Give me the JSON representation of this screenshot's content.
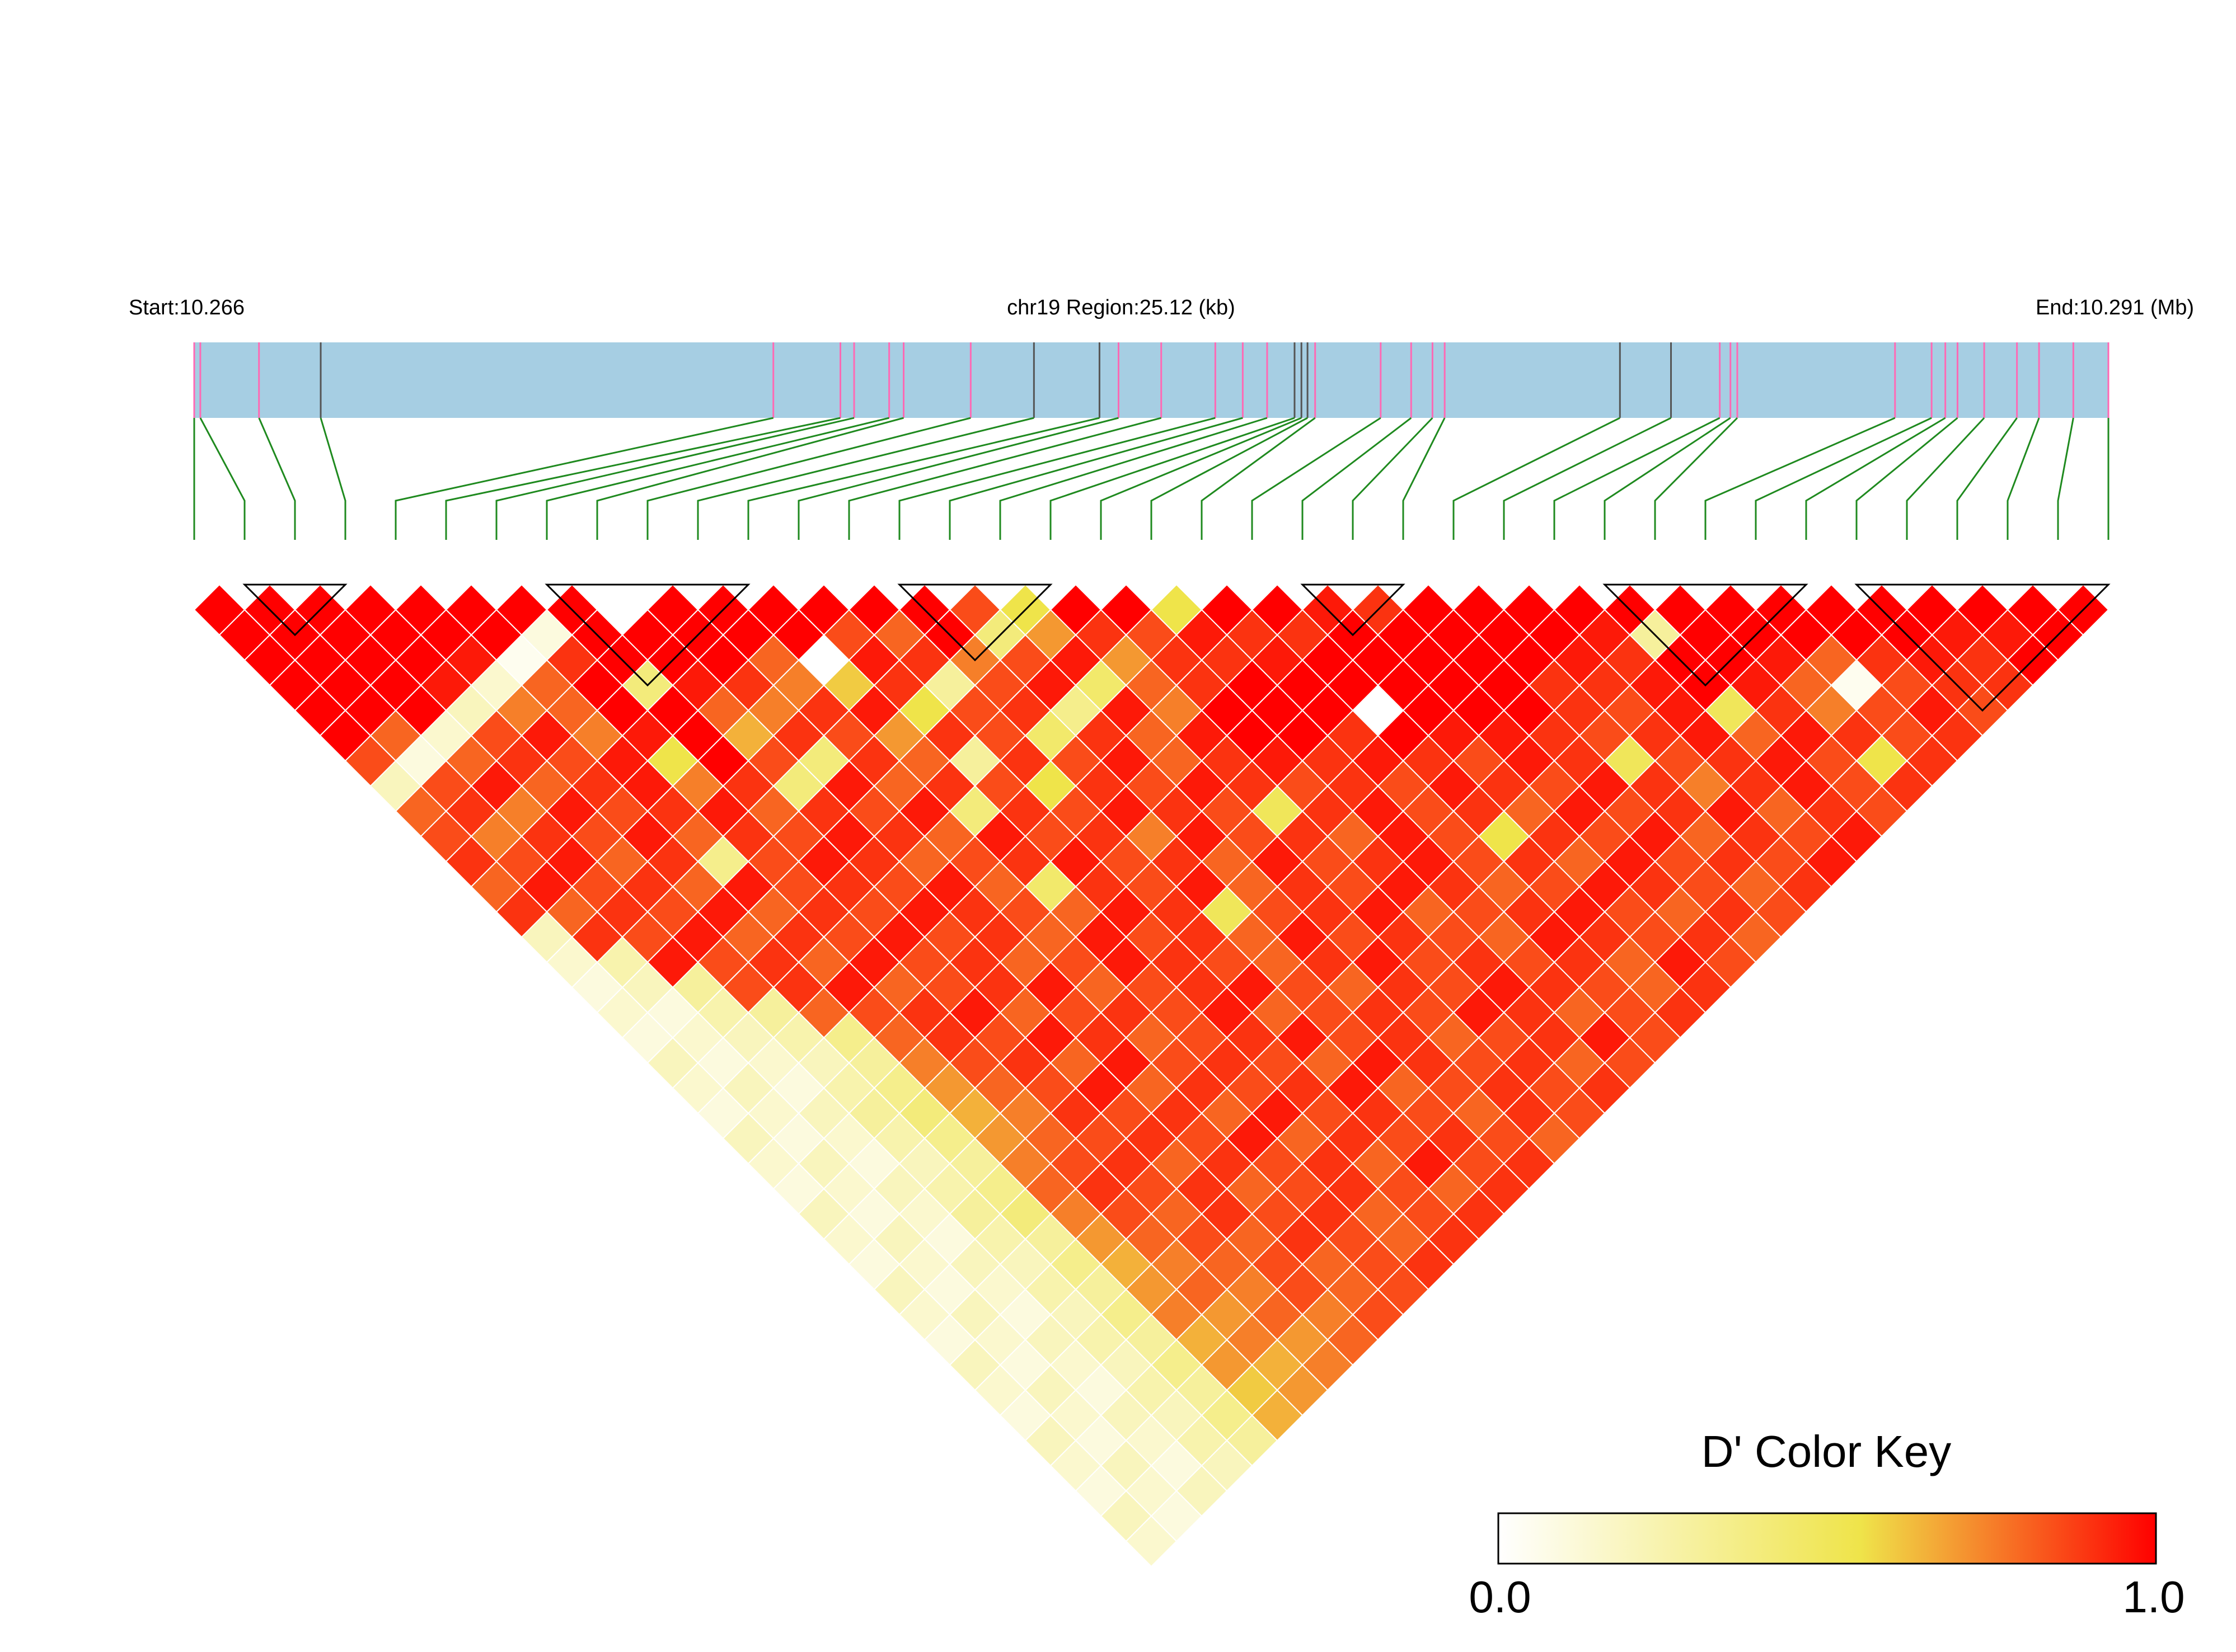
{
  "chart_data": {
    "type": "heatmap",
    "chromosome": "chr19",
    "labels": {
      "start": "Start:10.266",
      "region": "chr19 Region:25.12 (kb)",
      "end": "End:10.291 (Mb)"
    },
    "region": {
      "start_mb": 10.266,
      "end_mb": 10.291,
      "length_kb": 25.12
    },
    "snp_count": 39,
    "snp_positions_kb": [
      0.0,
      0.08,
      0.85,
      1.66,
      7.6,
      8.48,
      8.66,
      9.12,
      9.31,
      10.19,
      11.02,
      11.88,
      12.13,
      12.69,
      13.4,
      13.76,
      14.08,
      14.44,
      14.53,
      14.61,
      14.71,
      15.57,
      15.97,
      16.25,
      16.41,
      18.71,
      19.38,
      20.02,
      20.16,
      20.25,
      22.32,
      22.8,
      22.98,
      23.14,
      23.49,
      23.92,
      24.21,
      24.66,
      25.12
    ],
    "snp_marker_colors": [
      "#ff69b4",
      "#ff69b4",
      "#ff69b4",
      "#555555",
      "#ff69b4",
      "#ff69b4",
      "#ff69b4",
      "#ff69b4",
      "#ff69b4",
      "#ff69b4",
      "#555555",
      "#555555",
      "#ff69b4",
      "#ff69b4",
      "#ff69b4",
      "#ff69b4",
      "#ff69b4",
      "#555555",
      "#555555",
      "#555555",
      "#ff69b4",
      "#ff69b4",
      "#ff69b4",
      "#ff69b4",
      "#ff69b4",
      "#555555",
      "#555555",
      "#ff69b4",
      "#ff69b4",
      "#ff69b4",
      "#ff69b4",
      "#ff69b4",
      "#ff69b4",
      "#ff69b4",
      "#ff69b4",
      "#ff69b4",
      "#ff69b4",
      "#ff69b4",
      "#ff69b4"
    ],
    "ld_blocks": [
      [
        1,
        3
      ],
      [
        7,
        11
      ],
      [
        14,
        17
      ],
      [
        22,
        24
      ],
      [
        28,
        32
      ],
      [
        33,
        38
      ]
    ],
    "d_prime_matrix_rows": [
      "1111111101111111111111111111111111111111",
      "0111111111111111111111111111111111111111",
      "0011111111111111111111111111111111111111",
      "0001111111111111111111111111111111111111",
      "0000110001111111111111111111111111111111",
      "0000010000111111111111111111111111111111",
      "0000000000011111111111111111111111111111",
      "0000000000001111111111111111111111111111",
      "0000000000000111111111111111111111111111",
      "0000000000000011111111111111111111111111",
      "0000000000000001111111111111111111111111",
      "0000000000000000111111111111111111111111",
      "0000000000000000011111111111111111111111",
      "0000000000000000001111111111111111111111",
      "0000000000000000000111111111111111111111",
      "0000000000000000000011111111111111111111",
      "0000000000000000000001111111111111111111",
      "0000000000000000000000111111111111111111",
      "0000000000000000000000011111111111111111",
      "0000000000000000000000001111111111111111",
      "0000000000000000000000000111111111111111",
      "0000000000000000000000000011111111111111",
      "0000000000000000000000000001111111111111",
      "0000000000000000000000000000111111111111",
      "0000000000000000000000000000011111111111",
      "0000000000000000000000000000001111111111",
      "0000000000000000000000000000000111111111",
      "0000000000000000000000000000000011111111",
      "0000000000000000000000000000000001111111",
      "0000000000000000000000000000000000111111",
      "0000000000000000000000000000000000011111",
      "0000000000000000000000000000000000001111",
      "0000000000000000000000000000000000000111",
      "0000000000000000000000000000000000000011",
      "0000000000000000000000000000000000000001",
      "0000000000000000000000000000000000000000",
      "0000000000000000000000000000000000000000",
      "0000000000000000000000000000000000000000",
      "0000000000000000000000000000000000000000"
    ],
    "d_prime_band_values": [
      [
        1.0,
        1.0,
        1.0,
        1.0,
        1.0,
        1.0,
        1.0,
        1.0,
        0.0,
        1.0,
        1.0,
        1.0,
        1.0,
        1.0,
        1.0,
        0.85,
        0.55,
        1.0,
        1.0,
        0.55,
        1.0,
        1.0,
        0.95,
        0.9,
        1.0,
        1.0,
        1.0,
        1.0,
        1.0,
        1.0,
        1.0,
        1.0,
        1.0,
        1.0,
        1.0,
        1.0,
        1.0,
        1.0
      ],
      [
        1.0,
        1.0,
        1.0,
        1.0,
        1.0,
        1.0,
        0.1,
        1.0,
        1.0,
        1.0,
        1.0,
        1.0,
        0.85,
        0.8,
        1.0,
        0.4,
        0.7,
        0.9,
        0.85,
        0.95,
        0.9,
        0.9,
        1.0,
        1.0,
        1.0,
        1.0,
        1.0,
        0.95,
        0.3,
        1.0,
        1.0,
        1.0,
        1.0,
        1.0,
        0.95,
        0.95,
        1.0
      ],
      [
        1.0,
        1.0,
        1.0,
        1.0,
        0.95,
        0.05,
        0.9,
        1.0,
        1.0,
        1.0,
        0.8,
        0.0,
        0.95,
        0.9,
        0.75,
        0.85,
        0.95,
        0.7,
        0.9,
        0.9,
        0.95,
        1.0,
        1.0,
        1.0,
        1.0,
        1.0,
        0.95,
        0.9,
        1.0,
        1.0,
        0.95,
        0.8,
        0.9,
        0.95,
        0.9,
        1.0
      ],
      [
        1.0,
        1.0,
        1.0,
        0.95,
        0.15,
        0.8,
        1.0,
        0.4,
        0.95,
        0.9,
        0.75,
        0.6,
        0.9,
        0.3,
        0.85,
        0.95,
        0.45,
        0.8,
        0.9,
        1.0,
        1.0,
        1.0,
        1.0,
        1.0,
        1.0,
        0.9,
        0.9,
        0.95,
        1.0,
        0.95,
        0.8,
        0.05,
        0.85,
        0.9,
        0.9
      ],
      [
        1.0,
        1.0,
        1.0,
        0.2,
        0.75,
        0.8,
        1.0,
        1.0,
        0.8,
        0.75,
        0.9,
        0.95,
        0.55,
        0.85,
        0.9,
        0.35,
        0.95,
        0.75,
        1.0,
        1.0,
        1.0,
        0.0,
        1.0,
        1.0,
        1.0,
        0.9,
        0.85,
        0.95,
        0.5,
        0.9,
        0.75,
        0.85,
        0.95,
        0.85
      ],
      [
        1.0,
        0.8,
        0.15,
        0.85,
        0.95,
        0.75,
        0.95,
        1.0,
        0.65,
        0.9,
        0.85,
        0.7,
        0.9,
        0.85,
        0.45,
        0.9,
        0.8,
        0.95,
        1.0,
        1.0,
        0.9,
        1.0,
        0.95,
        0.95,
        0.9,
        0.85,
        0.9,
        0.95,
        0.8,
        0.95,
        0.9,
        0.85,
        0.9
      ],
      [
        0.85,
        0.1,
        0.8,
        0.9,
        0.85,
        0.95,
        0.55,
        1.0,
        0.85,
        0.4,
        0.9,
        0.8,
        0.3,
        0.9,
        0.85,
        0.95,
        0.8,
        0.9,
        0.95,
        0.9,
        0.95,
        0.9,
        0.85,
        0.95,
        0.9,
        0.5,
        0.85,
        0.9,
        0.95,
        0.85,
        0.55,
        0.9
      ],
      [
        0.2,
        0.85,
        0.95,
        0.8,
        0.9,
        0.95,
        0.75,
        0.9,
        0.4,
        0.95,
        0.8,
        0.9,
        0.85,
        0.55,
        0.9,
        0.85,
        0.95,
        0.9,
        0.85,
        0.9,
        0.85,
        0.95,
        0.9,
        0.85,
        0.95,
        0.9,
        0.75,
        0.9,
        0.95,
        0.85,
        0.9
      ],
      [
        0.8,
        0.9,
        0.75,
        0.95,
        0.85,
        0.9,
        0.95,
        0.8,
        0.9,
        0.85,
        0.95,
        0.4,
        0.9,
        0.85,
        0.95,
        0.9,
        0.85,
        0.5,
        0.9,
        0.95,
        0.85,
        0.9,
        0.8,
        0.95,
        0.85,
        0.9,
        0.95,
        0.8,
        0.9,
        0.85
      ],
      [
        0.85,
        0.75,
        0.9,
        0.85,
        0.95,
        0.8,
        0.9,
        0.85,
        0.95,
        0.9,
        0.8,
        0.95,
        0.85,
        0.9,
        0.75,
        0.95,
        0.85,
        0.9,
        0.8,
        0.95,
        0.85,
        0.55,
        0.9,
        0.85,
        0.95,
        0.8,
        0.9,
        0.85,
        0.95
      ],
      [
        0.9,
        0.85,
        0.95,
        0.8,
        0.9,
        0.35,
        0.85,
        0.95,
        0.9,
        0.8,
        0.85,
        0.9,
        0.95,
        0.85,
        0.9,
        0.8,
        0.95,
        0.85,
        0.9,
        0.95,
        0.85,
        0.9,
        0.8,
        0.95,
        0.85,
        0.9,
        0.85,
        0.95
      ],
      [
        0.8,
        0.95,
        0.85,
        0.9,
        0.8,
        0.95,
        0.85,
        0.9,
        0.85,
        0.95,
        0.8,
        0.45,
        0.9,
        0.85,
        0.95,
        0.8,
        0.9,
        0.85,
        0.95,
        0.9,
        0.8,
        0.85,
        0.95,
        0.9,
        0.85,
        0.8,
        0.9
      ],
      [
        0.9,
        0.8,
        0.9,
        0.85,
        0.95,
        0.8,
        0.9,
        0.85,
        0.95,
        0.9,
        0.85,
        0.8,
        0.95,
        0.9,
        0.5,
        0.85,
        0.9,
        0.95,
        0.8,
        0.85,
        0.9,
        0.95,
        0.85,
        0.8,
        0.9,
        0.85
      ],
      [
        0.2,
        0.9,
        0.85,
        0.95,
        0.8,
        0.9,
        0.85,
        0.95,
        0.85,
        0.9,
        0.8,
        0.95,
        0.85,
        0.9,
        0.8,
        0.95,
        0.85,
        0.9,
        0.85,
        0.8,
        0.95,
        0.9,
        0.85,
        0.9,
        0.8
      ],
      [
        0.15,
        0.25,
        0.95,
        0.85,
        0.9,
        0.8,
        0.95,
        0.85,
        0.9,
        0.8,
        0.85,
        0.95,
        0.9,
        0.85,
        0.8,
        0.9,
        0.95,
        0.85,
        0.9,
        0.85,
        0.9,
        0.8,
        0.95,
        0.85
      ],
      [
        0.1,
        0.2,
        0.3,
        0.85,
        0.9,
        0.95,
        0.8,
        0.85,
        0.9,
        0.95,
        0.8,
        0.85,
        0.9,
        0.95,
        0.85,
        0.8,
        0.9,
        0.85,
        0.95,
        0.9,
        0.85,
        0.8,
        0.9
      ],
      [
        0.15,
        0.1,
        0.25,
        0.3,
        0.8,
        0.85,
        0.9,
        0.95,
        0.8,
        0.85,
        0.9,
        0.85,
        0.95,
        0.8,
        0.85,
        0.9,
        0.85,
        0.95,
        0.9,
        0.8,
        0.85,
        0.9
      ],
      [
        0.1,
        0.15,
        0.2,
        0.25,
        0.35,
        0.8,
        0.9,
        0.85,
        0.95,
        0.9,
        0.8,
        0.85,
        0.9,
        0.95,
        0.85,
        0.9,
        0.8,
        0.85,
        0.9,
        0.95,
        0.85
      ],
      [
        0.2,
        0.1,
        0.15,
        0.2,
        0.3,
        0.75,
        0.85,
        0.9,
        0.8,
        0.95,
        0.85,
        0.9,
        0.85,
        0.8,
        0.95,
        0.9,
        0.85,
        0.9,
        0.8,
        0.85
      ],
      [
        0.15,
        0.2,
        0.1,
        0.25,
        0.35,
        0.7,
        0.8,
        0.85,
        0.95,
        0.8,
        0.9,
        0.85,
        0.9,
        0.95,
        0.8,
        0.85,
        0.9,
        0.85,
        0.9
      ],
      [
        0.1,
        0.15,
        0.2,
        0.3,
        0.4,
        0.65,
        0.75,
        0.9,
        0.85,
        0.9,
        0.8,
        0.95,
        0.85,
        0.9,
        0.85,
        0.8,
        0.9,
        0.85
      ],
      [
        0.2,
        0.1,
        0.15,
        0.25,
        0.35,
        0.7,
        0.8,
        0.85,
        0.9,
        0.85,
        0.95,
        0.8,
        0.9,
        0.85,
        0.9,
        0.85,
        0.8
      ],
      [
        0.15,
        0.2,
        0.1,
        0.2,
        0.3,
        0.75,
        0.85,
        0.9,
        0.8,
        0.9,
        0.85,
        0.9,
        0.8,
        0.95,
        0.85,
        0.9
      ],
      [
        0.1,
        0.15,
        0.2,
        0.25,
        0.35,
        0.8,
        0.9,
        0.85,
        0.9,
        0.8,
        0.85,
        0.9,
        0.85,
        0.8,
        0.9
      ],
      [
        0.2,
        0.1,
        0.15,
        0.3,
        0.4,
        0.75,
        0.85,
        0.8,
        0.9,
        0.85,
        0.9,
        0.8,
        0.85,
        0.9
      ],
      [
        0.15,
        0.2,
        0.1,
        0.25,
        0.3,
        0.7,
        0.8,
        0.85,
        0.8,
        0.9,
        0.85,
        0.8,
        0.9
      ],
      [
        0.1,
        0.15,
        0.2,
        0.2,
        0.35,
        0.65,
        0.75,
        0.8,
        0.85,
        0.8,
        0.85,
        0.9
      ],
      [
        0.2,
        0.1,
        0.15,
        0.25,
        0.3,
        0.7,
        0.8,
        0.75,
        0.85,
        0.8,
        0.85
      ],
      [
        0.15,
        0.2,
        0.1,
        0.2,
        0.35,
        0.75,
        0.7,
        0.8,
        0.75,
        0.85
      ],
      [
        0.1,
        0.15,
        0.2,
        0.25,
        0.3,
        0.65,
        0.75,
        0.7,
        0.8
      ],
      [
        0.2,
        0.1,
        0.15,
        0.2,
        0.35,
        0.7,
        0.65,
        0.75
      ],
      [
        0.15,
        0.2,
        0.1,
        0.25,
        0.3,
        0.6,
        0.7
      ],
      [
        0.1,
        0.15,
        0.2,
        0.2,
        0.35,
        0.65
      ],
      [
        0.2,
        0.1,
        0.15,
        0.25,
        0.3
      ],
      [
        0.15,
        0.2,
        0.1,
        0.2
      ],
      [
        0.1,
        0.15,
        0.2
      ],
      [
        0.2,
        0.1
      ],
      [
        0.15
      ]
    ],
    "color_key": {
      "title": "D' Color Key",
      "min_label": "0.0",
      "max_label": "1.0",
      "min": 0.0,
      "max": 1.0,
      "colors": [
        "#ffffff",
        "#efe44a",
        "#ff0000"
      ]
    },
    "colors": {
      "gene_track": "#a6cee3",
      "connector_lines": "#1f8a1f",
      "cell_border": "#ffffff",
      "block_outline": "#000000"
    }
  }
}
